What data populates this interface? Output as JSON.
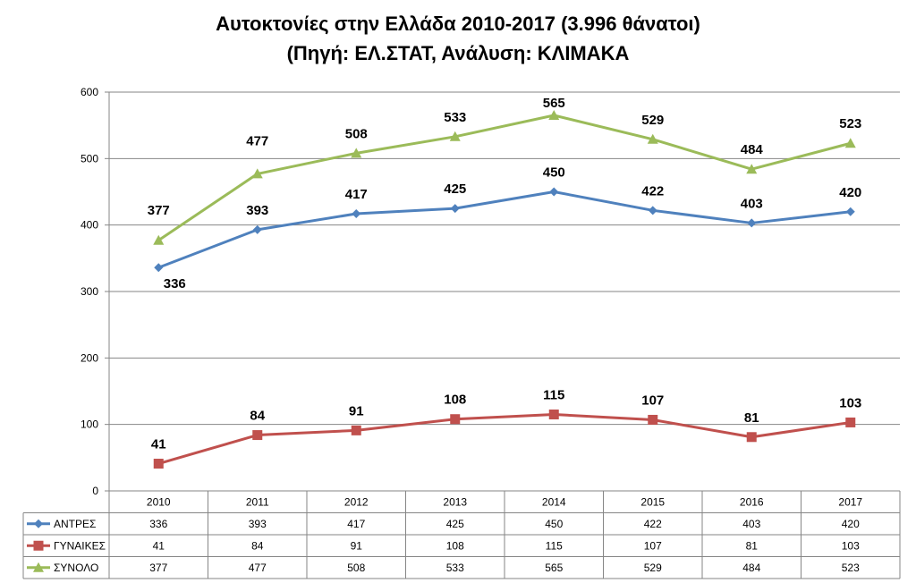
{
  "title_line1": "Αυτοκτονίες στην Ελλάδα 2010-2017 (3.996 θάνατοι)",
  "title_line2": "(Πηγή: ΕΛ.ΣΤΑΤ, Ανάλυση: ΚΛΙΜΑΚΑ",
  "chart_data": {
    "type": "line",
    "title": "Αυτοκτονίες στην Ελλάδα 2010-2017 (3.996 θάνατοι)",
    "subtitle": "(Πηγή: ΕΛ.ΣΤΑΤ, Ανάλυση: ΚΛΙΜΑΚΑ",
    "categories": [
      "2010",
      "2011",
      "2012",
      "2013",
      "2014",
      "2015",
      "2016",
      "2017"
    ],
    "ylim": [
      0,
      600
    ],
    "yticks": [
      0,
      100,
      200,
      300,
      400,
      500,
      600
    ],
    "grid": true,
    "legend": "data-table",
    "series": [
      {
        "name": "ΑΝΤΡΕΣ",
        "color": "#4f81bd",
        "marker": "diamond",
        "values": [
          336,
          393,
          417,
          425,
          450,
          422,
          403,
          420
        ]
      },
      {
        "name": "ΓΥΝΑΙΚΕΣ",
        "color": "#c0504d",
        "marker": "square",
        "values": [
          41,
          84,
          91,
          108,
          115,
          107,
          81,
          103
        ]
      },
      {
        "name": "ΣΥΝΟΛΟ",
        "color": "#9bbb59",
        "marker": "triangle",
        "values": [
          377,
          477,
          508,
          533,
          565,
          529,
          484,
          523
        ]
      }
    ]
  }
}
